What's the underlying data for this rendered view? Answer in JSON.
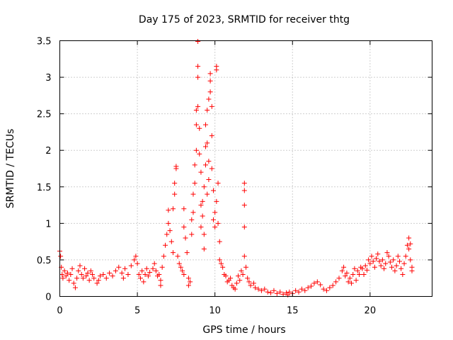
{
  "chart_data": {
    "type": "scatter",
    "title": "Day 175 of 2023, SRMTID for receiver thtg",
    "xlabel": "GPS time / hours",
    "ylabel": "SRMTID / TECUs",
    "xlim": [
      0,
      24
    ],
    "ylim": [
      0,
      3.5
    ],
    "xticks": [
      0,
      5,
      10,
      15,
      20
    ],
    "xtick_labels": [
      "0",
      "5",
      "10",
      "15",
      "20"
    ],
    "yticks": [
      0,
      0.5,
      1,
      1.5,
      2,
      2.5,
      3,
      3.5
    ],
    "ytick_labels": [
      "0",
      "0.5",
      "1",
      "1.5",
      "2",
      "2.5",
      "3",
      "3.5"
    ],
    "grid": true,
    "marker": "+",
    "color": "#ff0000",
    "series": [
      {
        "name": "SRMTID",
        "points": [
          [
            0.0,
            0.62
          ],
          [
            0.05,
            0.55
          ],
          [
            0.1,
            0.4
          ],
          [
            0.15,
            0.3
          ],
          [
            0.2,
            0.25
          ],
          [
            0.3,
            0.35
          ],
          [
            0.4,
            0.28
          ],
          [
            0.5,
            0.32
          ],
          [
            0.6,
            0.22
          ],
          [
            0.7,
            0.3
          ],
          [
            0.8,
            0.38
          ],
          [
            0.9,
            0.18
          ],
          [
            1.0,
            0.12
          ],
          [
            1.1,
            0.25
          ],
          [
            1.2,
            0.35
          ],
          [
            1.3,
            0.42
          ],
          [
            1.4,
            0.3
          ],
          [
            1.5,
            0.25
          ],
          [
            1.6,
            0.38
          ],
          [
            1.7,
            0.28
          ],
          [
            1.8,
            0.32
          ],
          [
            1.9,
            0.22
          ],
          [
            2.0,
            0.35
          ],
          [
            2.1,
            0.3
          ],
          [
            2.2,
            0.25
          ],
          [
            2.4,
            0.18
          ],
          [
            2.5,
            0.22
          ],
          [
            2.6,
            0.28
          ],
          [
            2.8,
            0.3
          ],
          [
            3.0,
            0.25
          ],
          [
            3.2,
            0.32
          ],
          [
            3.4,
            0.28
          ],
          [
            3.6,
            0.35
          ],
          [
            3.8,
            0.4
          ],
          [
            4.0,
            0.32
          ],
          [
            4.1,
            0.25
          ],
          [
            4.2,
            0.38
          ],
          [
            4.4,
            0.3
          ],
          [
            4.6,
            0.42
          ],
          [
            4.8,
            0.5
          ],
          [
            4.9,
            0.55
          ],
          [
            5.0,
            0.45
          ],
          [
            5.1,
            0.3
          ],
          [
            5.2,
            0.25
          ],
          [
            5.3,
            0.35
          ],
          [
            5.4,
            0.2
          ],
          [
            5.5,
            0.3
          ],
          [
            5.6,
            0.38
          ],
          [
            5.7,
            0.28
          ],
          [
            5.8,
            0.33
          ],
          [
            6.0,
            0.38
          ],
          [
            6.1,
            0.45
          ],
          [
            6.2,
            0.35
          ],
          [
            6.3,
            0.28
          ],
          [
            6.4,
            0.3
          ],
          [
            6.5,
            0.22
          ],
          [
            6.5,
            0.15
          ],
          [
            6.6,
            0.4
          ],
          [
            6.7,
            0.55
          ],
          [
            6.8,
            0.7
          ],
          [
            6.9,
            0.85
          ],
          [
            7.0,
            1.0
          ],
          [
            7.0,
            1.18
          ],
          [
            7.1,
            0.9
          ],
          [
            7.2,
            0.75
          ],
          [
            7.3,
            1.2
          ],
          [
            7.3,
            0.6
          ],
          [
            7.4,
            1.4
          ],
          [
            7.4,
            1.55
          ],
          [
            7.5,
            1.75
          ],
          [
            7.5,
            1.78
          ],
          [
            7.6,
            0.55
          ],
          [
            7.7,
            0.45
          ],
          [
            7.8,
            0.4
          ],
          [
            7.9,
            0.35
          ],
          [
            8.0,
            0.3
          ],
          [
            8.0,
            1.2
          ],
          [
            8.0,
            0.95
          ],
          [
            8.1,
            0.8
          ],
          [
            8.2,
            0.6
          ],
          [
            8.3,
            0.25
          ],
          [
            8.3,
            0.15
          ],
          [
            8.4,
            0.2
          ],
          [
            8.5,
            0.85
          ],
          [
            8.5,
            1.05
          ],
          [
            8.6,
            1.15
          ],
          [
            8.6,
            1.4
          ],
          [
            8.7,
            1.55
          ],
          [
            8.7,
            1.8
          ],
          [
            8.8,
            2.0
          ],
          [
            8.8,
            2.35
          ],
          [
            8.8,
            2.55
          ],
          [
            8.9,
            2.6
          ],
          [
            8.9,
            3.15
          ],
          [
            8.9,
            3.0
          ],
          [
            8.9,
            3.49
          ],
          [
            9.0,
            2.3
          ],
          [
            9.0,
            1.95
          ],
          [
            9.1,
            1.7
          ],
          [
            9.1,
            1.25
          ],
          [
            9.1,
            0.95
          ],
          [
            9.2,
            1.1
          ],
          [
            9.2,
            1.3
          ],
          [
            9.3,
            0.65
          ],
          [
            9.3,
            0.85
          ],
          [
            9.3,
            1.5
          ],
          [
            9.4,
            1.8
          ],
          [
            9.4,
            2.05
          ],
          [
            9.4,
            2.35
          ],
          [
            9.5,
            2.55
          ],
          [
            9.5,
            2.1
          ],
          [
            9.5,
            1.4
          ],
          [
            9.6,
            1.6
          ],
          [
            9.6,
            1.85
          ],
          [
            9.6,
            2.7
          ],
          [
            9.7,
            2.95
          ],
          [
            9.7,
            3.05
          ],
          [
            9.7,
            2.8
          ],
          [
            9.8,
            2.6
          ],
          [
            9.8,
            2.2
          ],
          [
            9.8,
            1.75
          ],
          [
            9.9,
            1.45
          ],
          [
            9.9,
            1.05
          ],
          [
            10.0,
            0.95
          ],
          [
            10.0,
            1.15
          ],
          [
            10.1,
            1.3
          ],
          [
            10.1,
            3.15
          ],
          [
            10.1,
            3.1
          ],
          [
            10.2,
            1.55
          ],
          [
            10.2,
            1.0
          ],
          [
            10.3,
            0.75
          ],
          [
            10.3,
            0.5
          ],
          [
            10.4,
            0.45
          ],
          [
            10.5,
            0.4
          ],
          [
            10.6,
            0.3
          ],
          [
            10.7,
            0.28
          ],
          [
            10.8,
            0.2
          ],
          [
            10.9,
            0.22
          ],
          [
            11.0,
            0.25
          ],
          [
            11.1,
            0.15
          ],
          [
            11.2,
            0.12
          ],
          [
            11.3,
            0.1
          ],
          [
            11.4,
            0.18
          ],
          [
            11.5,
            0.28
          ],
          [
            11.6,
            0.22
          ],
          [
            11.7,
            0.35
          ],
          [
            11.8,
            0.3
          ],
          [
            11.9,
            1.55
          ],
          [
            11.9,
            1.45
          ],
          [
            11.9,
            1.25
          ],
          [
            11.9,
            0.95
          ],
          [
            11.9,
            0.55
          ],
          [
            12.0,
            0.4
          ],
          [
            12.1,
            0.25
          ],
          [
            12.2,
            0.2
          ],
          [
            12.3,
            0.15
          ],
          [
            12.5,
            0.18
          ],
          [
            12.6,
            0.12
          ],
          [
            12.8,
            0.1
          ],
          [
            13.0,
            0.08
          ],
          [
            13.2,
            0.1
          ],
          [
            13.4,
            0.06
          ],
          [
            13.6,
            0.05
          ],
          [
            13.8,
            0.08
          ],
          [
            14.0,
            0.04
          ],
          [
            14.2,
            0.06
          ],
          [
            14.4,
            0.03
          ],
          [
            14.6,
            0.05
          ],
          [
            14.7,
            0.02
          ],
          [
            14.8,
            0.06
          ],
          [
            15.0,
            0.04
          ],
          [
            15.2,
            0.08
          ],
          [
            15.4,
            0.06
          ],
          [
            15.6,
            0.1
          ],
          [
            15.8,
            0.08
          ],
          [
            16.0,
            0.12
          ],
          [
            16.2,
            0.14
          ],
          [
            16.4,
            0.18
          ],
          [
            16.6,
            0.2
          ],
          [
            16.8,
            0.16
          ],
          [
            17.0,
            0.1
          ],
          [
            17.2,
            0.08
          ],
          [
            17.4,
            0.12
          ],
          [
            17.6,
            0.15
          ],
          [
            17.8,
            0.2
          ],
          [
            18.0,
            0.25
          ],
          [
            18.2,
            0.35
          ],
          [
            18.3,
            0.4
          ],
          [
            18.4,
            0.28
          ],
          [
            18.5,
            0.32
          ],
          [
            18.6,
            0.2
          ],
          [
            18.7,
            0.25
          ],
          [
            18.8,
            0.18
          ],
          [
            18.9,
            0.3
          ],
          [
            19.0,
            0.38
          ],
          [
            19.1,
            0.22
          ],
          [
            19.2,
            0.35
          ],
          [
            19.3,
            0.3
          ],
          [
            19.4,
            0.4
          ],
          [
            19.5,
            0.38
          ],
          [
            19.6,
            0.3
          ],
          [
            19.7,
            0.42
          ],
          [
            19.8,
            0.36
          ],
          [
            19.9,
            0.5
          ],
          [
            20.0,
            0.45
          ],
          [
            20.1,
            0.55
          ],
          [
            20.2,
            0.48
          ],
          [
            20.3,
            0.4
          ],
          [
            20.4,
            0.52
          ],
          [
            20.5,
            0.58
          ],
          [
            20.6,
            0.48
          ],
          [
            20.7,
            0.42
          ],
          [
            20.8,
            0.5
          ],
          [
            20.9,
            0.38
          ],
          [
            21.0,
            0.45
          ],
          [
            21.1,
            0.6
          ],
          [
            21.2,
            0.55
          ],
          [
            21.3,
            0.47
          ],
          [
            21.4,
            0.4
          ],
          [
            21.5,
            0.5
          ],
          [
            21.6,
            0.35
          ],
          [
            21.7,
            0.42
          ],
          [
            21.8,
            0.55
          ],
          [
            21.9,
            0.48
          ],
          [
            22.0,
            0.38
          ],
          [
            22.1,
            0.3
          ],
          [
            22.2,
            0.45
          ],
          [
            22.3,
            0.55
          ],
          [
            22.4,
            0.7
          ],
          [
            22.5,
            0.8
          ],
          [
            22.5,
            0.65
          ],
          [
            22.6,
            0.72
          ],
          [
            22.6,
            0.5
          ],
          [
            22.7,
            0.4
          ],
          [
            22.7,
            0.35
          ]
        ]
      }
    ]
  }
}
